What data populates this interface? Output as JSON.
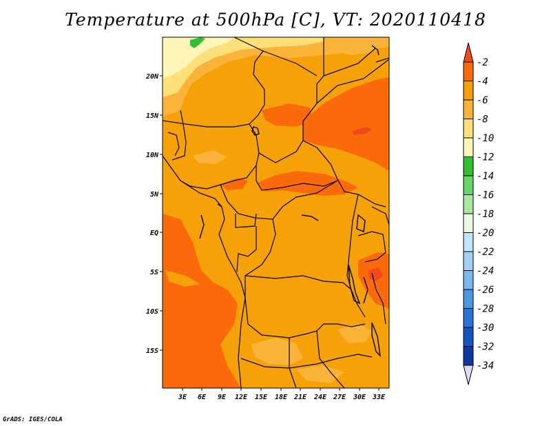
{
  "title": "Temperature at 500hPa [C], VT: 2020110418",
  "credit": "GrADS: IGES/COLA",
  "map": {
    "lat_labels": [
      "20N",
      "15N",
      "10N",
      "5N",
      "EQ",
      "5S",
      "10S",
      "15S"
    ],
    "lon_labels": [
      "3E",
      "6E",
      "9E",
      "12E",
      "15E",
      "18E",
      "21E",
      "24E",
      "27E",
      "30E",
      "33E"
    ],
    "lat_range": [
      -19.5,
      24.5
    ],
    "lon_range": [
      0,
      34.5
    ]
  },
  "colorbar": {
    "labels": [
      "-2",
      "-4",
      "-6",
      "-8",
      "-10",
      "-12",
      "-14",
      "-16",
      "-18",
      "-20",
      "-22",
      "-24",
      "-26",
      "-28",
      "-30",
      "-32",
      "-34"
    ],
    "colors": [
      "#f04a1c",
      "#fb6a0a",
      "#f7a108",
      "#fbb43a",
      "#fde07a",
      "#fef6b8",
      "#30c030",
      "#66d466",
      "#a8e8a0",
      "#e8fae0",
      "#bfe6fb",
      "#a0d0f5",
      "#7ab8ee",
      "#4c96e4",
      "#2a74d8",
      "#1456c0",
      "#0a3aa0",
      "#0a1670",
      "#dcdcf4"
    ]
  },
  "chart_data": {
    "type": "heatmap",
    "title": "Temperature at 500hPa [C], VT: 2020110418",
    "xlabel": "",
    "ylabel": "",
    "x_ticks": [
      "3E",
      "6E",
      "9E",
      "12E",
      "15E",
      "18E",
      "21E",
      "24E",
      "27E",
      "30E",
      "33E"
    ],
    "y_ticks": [
      "20N",
      "15N",
      "10N",
      "5N",
      "EQ",
      "5S",
      "10S",
      "15S"
    ],
    "colorbar_levels": [
      -2,
      -4,
      -6,
      -8,
      -10,
      -12,
      -14,
      -16,
      -18,
      -20,
      -22,
      -24,
      -26,
      -28,
      -30,
      -32,
      -34
    ],
    "value_range_c": [
      -12,
      -2
    ],
    "dominant_value_c": "-6 to -4"
  }
}
